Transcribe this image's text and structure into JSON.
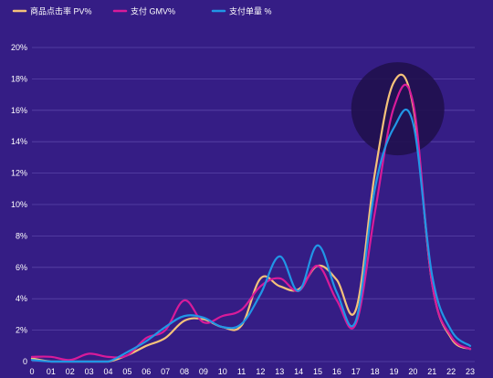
{
  "colors": {
    "background": "#351d85",
    "grid": "#5a45a8",
    "highlight": "#1e0f4a",
    "text": "#ffffff"
  },
  "chart_data": {
    "type": "line",
    "title": "",
    "xlabel": "",
    "ylabel": "",
    "x": [
      "0",
      "01",
      "02",
      "03",
      "04",
      "05",
      "06",
      "07",
      "08",
      "09",
      "10",
      "11",
      "12",
      "13",
      "14",
      "15",
      "16",
      "17",
      "18",
      "19",
      "20",
      "21",
      "22",
      "23"
    ],
    "y_ticks": [
      "0",
      "2%",
      "4%",
      "6%",
      "8%",
      "10%",
      "12%",
      "14%",
      "16%",
      "18%",
      "20%"
    ],
    "ylim": [
      0,
      20
    ],
    "grid": true,
    "legend_position": "top-left",
    "highlight": {
      "shape": "circle",
      "x_index": 19.2,
      "y_value": 16.1
    },
    "series": [
      {
        "name": "商品点击率 PV%",
        "color": "#f5c27a",
        "values": [
          0.2,
          0.0,
          0.0,
          0.0,
          0.0,
          0.4,
          1.0,
          1.5,
          2.6,
          2.7,
          2.2,
          2.3,
          5.3,
          4.8,
          4.6,
          6.1,
          5.2,
          3.3,
          12.0,
          17.8,
          16.3,
          5.0,
          1.5,
          0.8
        ]
      },
      {
        "name": "支付 GMV%",
        "color": "#d81b9a",
        "values": [
          0.3,
          0.3,
          0.1,
          0.5,
          0.3,
          0.4,
          1.5,
          2.0,
          3.9,
          2.5,
          2.9,
          3.3,
          4.8,
          5.3,
          4.5,
          6.1,
          3.9,
          2.4,
          9.5,
          16.2,
          16.5,
          5.0,
          1.6,
          0.8
        ]
      },
      {
        "name": "支付单量 %",
        "color": "#2196e6",
        "values": [
          0.1,
          0.0,
          0.0,
          0.0,
          0.0,
          0.6,
          1.3,
          2.2,
          2.9,
          2.8,
          2.2,
          2.4,
          4.3,
          6.7,
          4.5,
          7.4,
          4.4,
          2.6,
          11.0,
          14.9,
          15.2,
          5.5,
          2.0,
          1.0
        ]
      }
    ]
  }
}
